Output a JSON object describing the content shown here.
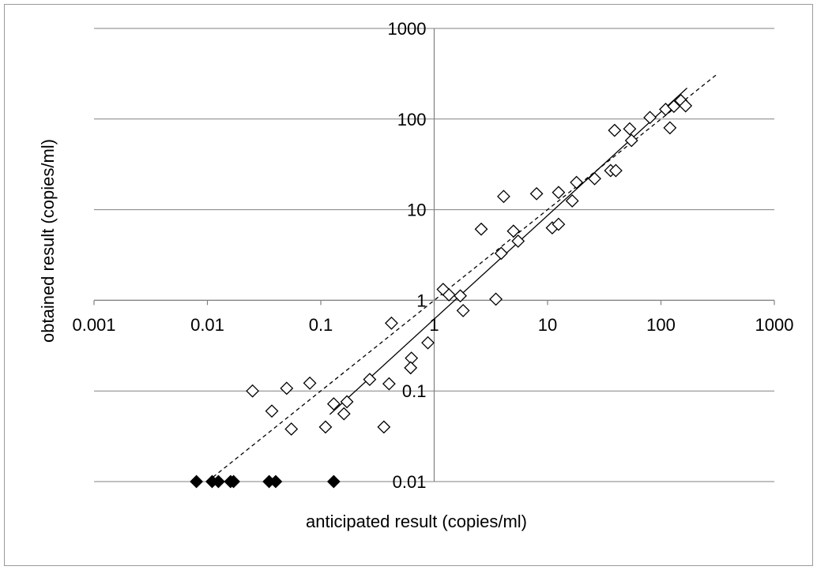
{
  "chart_data": {
    "type": "scatter",
    "xlabel": "anticipated result (copies/ml)",
    "ylabel": "obtained result (copies/ml)",
    "xscale": "log",
    "yscale": "log",
    "xlim": [
      0.001,
      1000
    ],
    "ylim": [
      0.01,
      1000
    ],
    "x_ticks": [
      0.001,
      0.01,
      0.1,
      1,
      10,
      100,
      1000
    ],
    "x_tick_labels": [
      "0.001",
      "0.01",
      "0.1",
      "1",
      "10",
      "100",
      "1000"
    ],
    "y_ticks": [
      0.01,
      0.1,
      1,
      10,
      100,
      1000
    ],
    "y_tick_labels": [
      "0.01",
      "0.1",
      "1",
      "10",
      "100",
      "1000"
    ],
    "grid": "horizontal",
    "legend": "none",
    "series": [
      {
        "marker": "open-diamond",
        "color": "#000000",
        "points": [
          [
            0.025,
            0.1
          ],
          [
            0.05,
            0.107
          ],
          [
            0.08,
            0.122
          ],
          [
            0.037,
            0.06
          ],
          [
            0.055,
            0.038
          ],
          [
            0.11,
            0.04
          ],
          [
            0.13,
            0.072
          ],
          [
            0.16,
            0.056
          ],
          [
            0.17,
            0.076
          ],
          [
            0.27,
            0.134
          ],
          [
            0.36,
            0.04
          ],
          [
            0.42,
            0.56
          ],
          [
            0.4,
            0.12
          ],
          [
            0.63,
            0.23
          ],
          [
            0.62,
            0.18
          ],
          [
            0.88,
            0.34
          ],
          [
            1.2,
            1.32
          ],
          [
            1.35,
            1.15
          ],
          [
            1.7,
            1.12
          ],
          [
            1.8,
            0.77
          ],
          [
            2.6,
            6.1
          ],
          [
            3.5,
            1.03
          ],
          [
            3.9,
            3.3
          ],
          [
            4.1,
            14.0
          ],
          [
            5.0,
            5.8
          ],
          [
            5.5,
            4.5
          ],
          [
            8.0,
            15.0
          ],
          [
            11.0,
            6.3
          ],
          [
            12.5,
            6.9
          ],
          [
            12.5,
            15.5
          ],
          [
            16.5,
            12.5
          ],
          [
            18.0,
            20.0
          ],
          [
            26.0,
            22.0
          ],
          [
            36.0,
            27.0
          ],
          [
            40.0,
            27.0
          ],
          [
            39.0,
            75.0
          ],
          [
            53.0,
            78.0
          ],
          [
            55.0,
            58.0
          ],
          [
            80.0,
            104.0
          ],
          [
            110.0,
            128.0
          ],
          [
            120.0,
            80.0
          ],
          [
            130.0,
            138.0
          ],
          [
            150.0,
            160.0
          ],
          [
            165.0,
            140.0
          ]
        ]
      },
      {
        "marker": "filled-diamond",
        "color": "#000000",
        "points": [
          [
            0.008,
            0.01
          ],
          [
            0.011,
            0.01
          ],
          [
            0.0125,
            0.01
          ],
          [
            0.016,
            0.01
          ],
          [
            0.017,
            0.01
          ],
          [
            0.035,
            0.01
          ],
          [
            0.04,
            0.01
          ],
          [
            0.13,
            0.01
          ]
        ]
      }
    ],
    "lines": [
      {
        "style": "solid",
        "color": "#000000",
        "x": [
          0.12,
          170
        ],
        "y": [
          0.055,
          220
        ]
      },
      {
        "style": "dashed",
        "color": "#000000",
        "x": [
          0.01,
          320
        ],
        "y": [
          0.01,
          320
        ]
      }
    ]
  }
}
